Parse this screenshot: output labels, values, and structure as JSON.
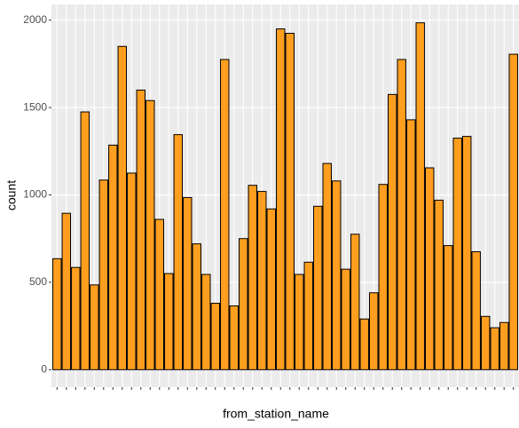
{
  "chart_data": {
    "type": "bar",
    "x_label": "from_station_name",
    "y_label": "count",
    "categories": [
      null,
      null,
      null,
      null,
      null,
      null,
      null,
      null,
      null,
      null,
      null,
      null,
      null,
      null,
      null,
      null,
      null,
      null,
      null,
      null,
      null,
      null,
      null,
      null,
      null,
      null,
      null,
      null,
      null,
      null,
      null,
      null,
      null,
      null,
      null,
      null,
      null,
      null,
      null,
      null,
      null,
      null,
      null,
      null,
      null,
      null,
      null,
      null,
      null,
      null
    ],
    "values": [
      635,
      895,
      585,
      1475,
      485,
      1085,
      1285,
      1850,
      1125,
      1600,
      1540,
      860,
      550,
      1345,
      985,
      720,
      545,
      380,
      1775,
      365,
      750,
      1055,
      1020,
      920,
      1950,
      1925,
      545,
      615,
      935,
      1180,
      1080,
      575,
      775,
      290,
      440,
      1060,
      1575,
      1775,
      1430,
      1985,
      1155,
      970,
      710,
      1325,
      1335,
      675,
      305,
      240,
      270,
      1805
    ],
    "color": "#ff9e1f",
    "ylim": [
      -100,
      2090
    ],
    "yticks": [
      0,
      500,
      1000,
      1500,
      2000
    ],
    "grid": true
  }
}
